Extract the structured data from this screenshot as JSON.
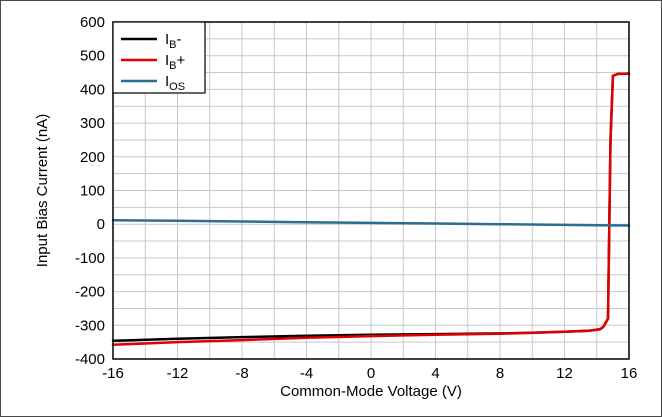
{
  "chart_data": {
    "type": "line",
    "xlabel": "Common-Mode Voltage (V)",
    "ylabel": "Input Bias Current (nA)",
    "xlim": [
      -16,
      16
    ],
    "ylim": [
      -400,
      600
    ],
    "x_ticks": [
      "-16",
      "-12",
      "-8",
      "-4",
      "0",
      "4",
      "8",
      "12",
      "16"
    ],
    "y_ticks": [
      "600",
      "500",
      "400",
      "300",
      "200",
      "100",
      "0",
      "-100",
      "-200",
      "-300",
      "-400"
    ],
    "grid": true,
    "legend_position": "top-left",
    "series": [
      {
        "name": "IB-",
        "label_main": "I",
        "label_sub": "B",
        "label_suffix": "-",
        "color": "#000000",
        "points": [
          [
            -16,
            -346
          ],
          [
            -12,
            -340
          ],
          [
            -8,
            -335
          ],
          [
            -4,
            -331
          ],
          [
            0,
            -328
          ],
          [
            4,
            -326
          ],
          [
            8,
            -324
          ],
          [
            10,
            -322
          ],
          [
            12,
            -319
          ],
          [
            13.5,
            -316
          ],
          [
            14.2,
            -312
          ],
          [
            14.4,
            -305
          ],
          [
            14.7,
            -280
          ],
          [
            14.85,
            250
          ],
          [
            15.0,
            440
          ],
          [
            15.3,
            446
          ],
          [
            16,
            447
          ]
        ]
      },
      {
        "name": "IB+",
        "label_main": "I",
        "label_sub": "B",
        "label_suffix": "+",
        "color": "#e00000",
        "points": [
          [
            -16,
            -358
          ],
          [
            -12,
            -350
          ],
          [
            -8,
            -344
          ],
          [
            -4,
            -337
          ],
          [
            0,
            -332
          ],
          [
            4,
            -328
          ],
          [
            8,
            -325
          ],
          [
            10,
            -322
          ],
          [
            12,
            -319
          ],
          [
            13.5,
            -316
          ],
          [
            14.2,
            -312
          ],
          [
            14.4,
            -305
          ],
          [
            14.7,
            -280
          ],
          [
            14.85,
            250
          ],
          [
            15.0,
            440
          ],
          [
            15.3,
            446
          ],
          [
            16,
            447
          ]
        ]
      },
      {
        "name": "IOS",
        "label_main": "I",
        "label_sub": "OS",
        "label_suffix": "",
        "color": "#2e6d8e",
        "points": [
          [
            -16,
            12
          ],
          [
            -12,
            10
          ],
          [
            -8,
            8
          ],
          [
            -4,
            6
          ],
          [
            0,
            4
          ],
          [
            4,
            2
          ],
          [
            8,
            0
          ],
          [
            12,
            -2
          ],
          [
            14,
            -3
          ],
          [
            16,
            -4
          ]
        ]
      }
    ]
  }
}
